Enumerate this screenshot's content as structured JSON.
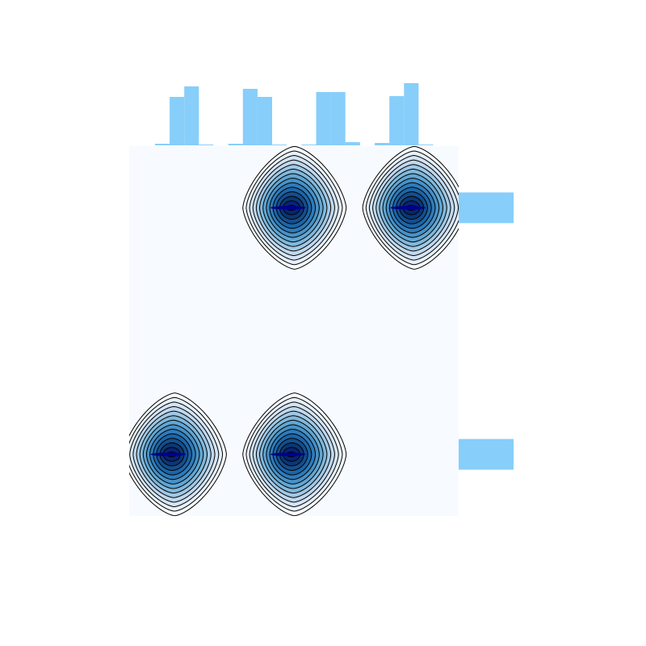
{
  "chart_data": {
    "type": "heatmap",
    "subtype": "joint-kde-with-marginal-histograms",
    "title": "",
    "xlabel": "",
    "ylabel": "",
    "grid": false,
    "axes_visible": false,
    "colors": {
      "background": "#f7fbff",
      "colormap": [
        "#f7fbff",
        "#c6dbef",
        "#6baed6",
        "#2171b5",
        "#08306b",
        "#00008b"
      ],
      "contour_line": "#000000",
      "marginal_bars": "#87cefa"
    },
    "clusters": [
      {
        "x": 1,
        "y": 1
      },
      {
        "x": 2,
        "y": 1
      },
      {
        "x": 0,
        "y": 0
      },
      {
        "x": 1,
        "y": 0
      }
    ],
    "contour_levels": 14,
    "marginal_x": {
      "bins": [
        {
          "bin": 1,
          "value": 0.02
        },
        {
          "bin": 2,
          "value": 0.6
        },
        {
          "bin": 3,
          "value": 0.73
        },
        {
          "bin": 4,
          "value": 0.01
        },
        {
          "bin": 5,
          "value": 0.02
        },
        {
          "bin": 6,
          "value": 0.7
        },
        {
          "bin": 7,
          "value": 0.6
        },
        {
          "bin": 8,
          "value": 0.01
        },
        {
          "bin": 9,
          "value": 0.01
        },
        {
          "bin": 10,
          "value": 0.66
        },
        {
          "bin": 11,
          "value": 0.66
        },
        {
          "bin": 12,
          "value": 0.04
        },
        {
          "bin": 13,
          "value": 0.03
        },
        {
          "bin": 14,
          "value": 0.61
        },
        {
          "bin": 15,
          "value": 0.77
        },
        {
          "bin": 16,
          "value": 0.01
        }
      ]
    },
    "marginal_y": {
      "bins": [
        {
          "row": "top",
          "value": 1.0
        },
        {
          "row": "bottom",
          "value": 1.0
        }
      ]
    }
  }
}
